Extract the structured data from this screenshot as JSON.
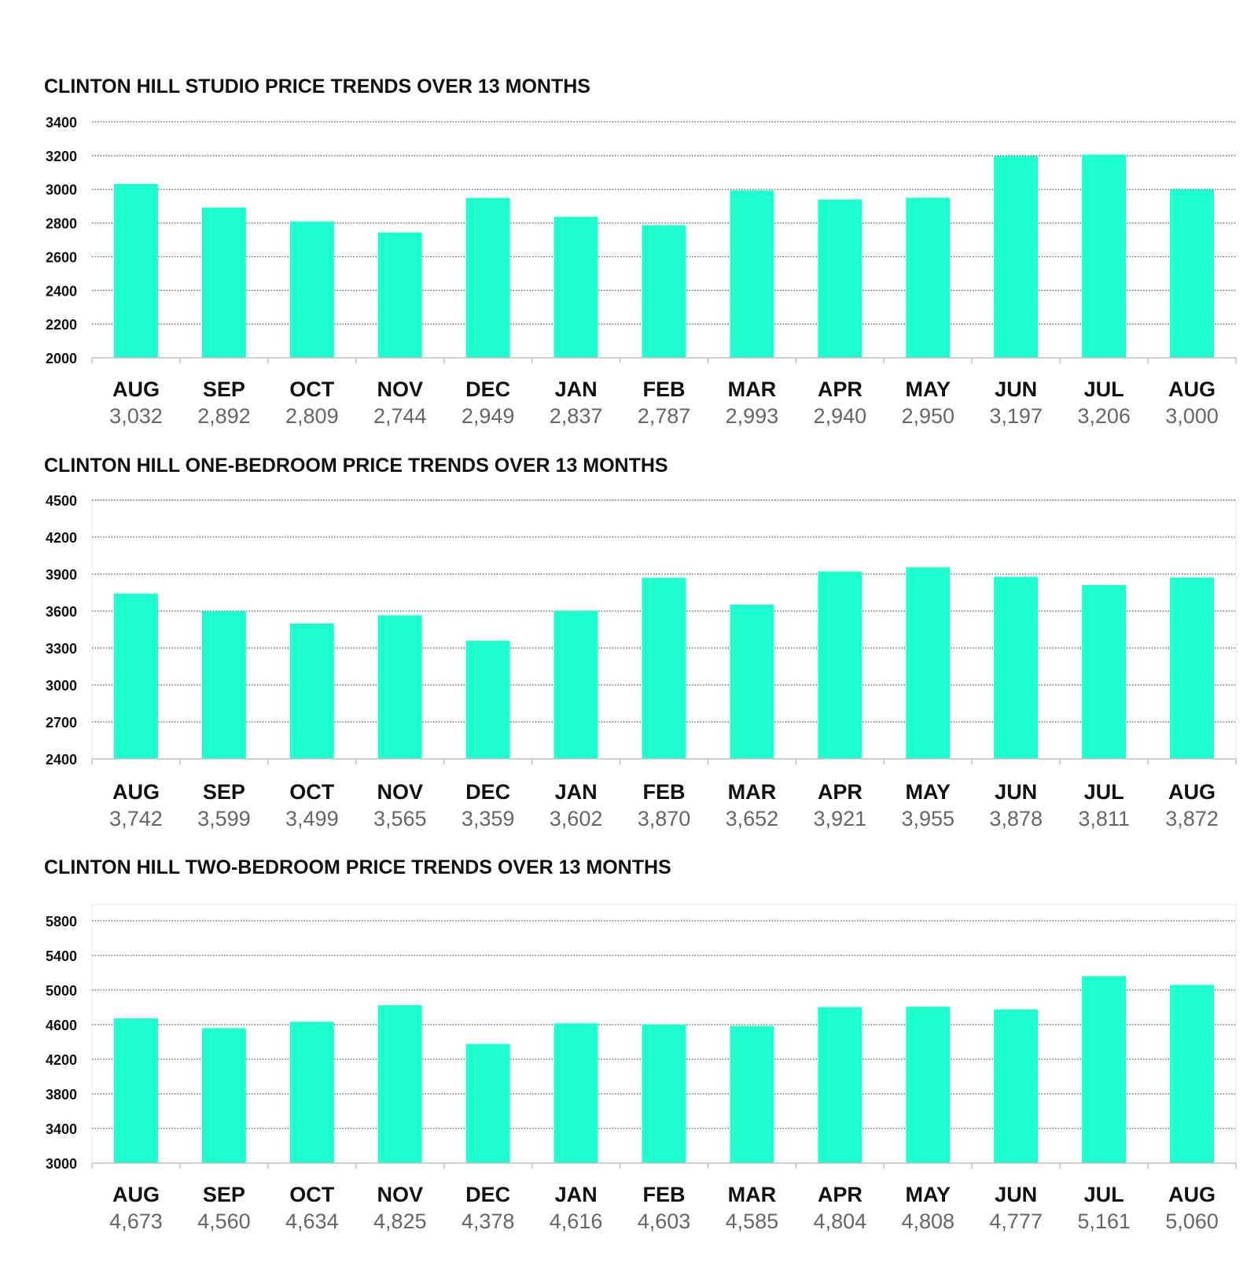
{
  "chart_data": [
    {
      "type": "bar",
      "title": "CLINTON HILL STUDIO PRICE TRENDS OVER 13 MONTHS",
      "categories": [
        "AUG",
        "SEP",
        "OCT",
        "NOV",
        "DEC",
        "JAN",
        "FEB",
        "MAR",
        "APR",
        "MAY",
        "JUN",
        "JUL",
        "AUG"
      ],
      "values": [
        3032,
        2892,
        2809,
        2744,
        2949,
        2837,
        2787,
        2993,
        2940,
        2950,
        3197,
        3206,
        3000
      ],
      "value_labels": [
        "3,032",
        "2,892",
        "2,809",
        "2,744",
        "2,949",
        "2,837",
        "2,787",
        "2,993",
        "2,940",
        "2,950",
        "3,197",
        "3,206",
        "3,000"
      ],
      "yticks": [
        2000,
        2200,
        2400,
        2600,
        2800,
        3000,
        3200,
        3400
      ],
      "ylim": [
        2000,
        3400
      ],
      "grid": true,
      "legend": "none",
      "bar_color": "#1effd0"
    },
    {
      "type": "bar",
      "title": "CLINTON HILL ONE-BEDROOM PRICE TRENDS OVER 13 MONTHS",
      "categories": [
        "AUG",
        "SEP",
        "OCT",
        "NOV",
        "DEC",
        "JAN",
        "FEB",
        "MAR",
        "APR",
        "MAY",
        "JUN",
        "JUL",
        "AUG"
      ],
      "values": [
        3742,
        3599,
        3499,
        3565,
        3359,
        3602,
        3870,
        3652,
        3921,
        3955,
        3878,
        3811,
        3872
      ],
      "value_labels": [
        "3,742",
        "3,599",
        "3,499",
        "3,565",
        "3,359",
        "3,602",
        "3,870",
        "3,652",
        "3,921",
        "3,955",
        "3,878",
        "3,811",
        "3,872"
      ],
      "yticks": [
        2400,
        2700,
        3000,
        3300,
        3600,
        3900,
        4200,
        4500
      ],
      "ylim": [
        2400,
        4500
      ],
      "grid": true,
      "legend": "none",
      "bar_color": "#1effd0"
    },
    {
      "type": "bar",
      "title": "CLINTON HILL TWO-BEDROOM PRICE TRENDS OVER 13 MONTHS",
      "categories": [
        "AUG",
        "SEP",
        "OCT",
        "NOV",
        "DEC",
        "JAN",
        "FEB",
        "MAR",
        "APR",
        "MAY",
        "JUN",
        "JUL",
        "AUG"
      ],
      "values": [
        4673,
        4560,
        4634,
        4825,
        4378,
        4616,
        4603,
        4585,
        4804,
        4808,
        4777,
        5161,
        5060
      ],
      "value_labels": [
        "4,673",
        "4,560",
        "4,634",
        "4,825",
        "4,378",
        "4,616",
        "4,603",
        "4,585",
        "4,804",
        "4,808",
        "4,777",
        "5,161",
        "5,060"
      ],
      "yticks": [
        3000,
        3400,
        3800,
        4200,
        4600,
        5000,
        5400,
        5800
      ],
      "ylim": [
        3000,
        5800
      ],
      "grid": true,
      "legend": "none",
      "bar_color": "#1effd0"
    }
  ]
}
